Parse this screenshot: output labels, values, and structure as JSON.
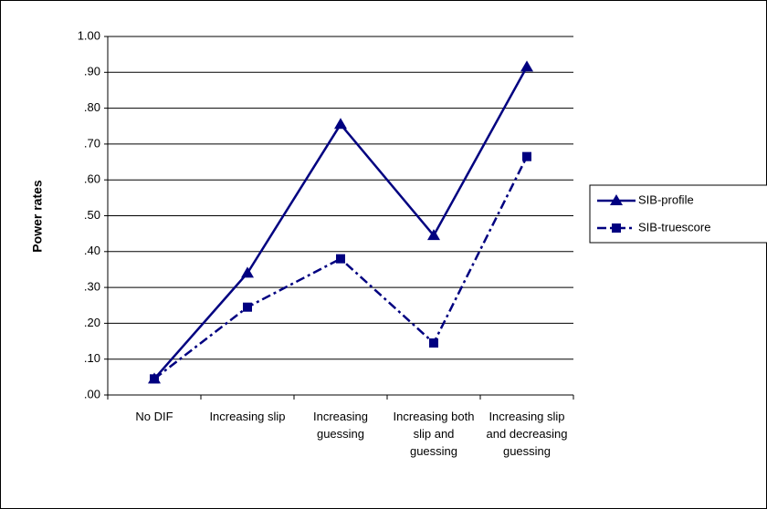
{
  "chart_data": {
    "type": "line",
    "y_label": "Power rates",
    "categories": [
      "No DIF",
      "Increasing slip",
      "Increasing guessing",
      "Increasing both slip and guessing",
      "Increasing slip and decreasing guessing"
    ],
    "series": [
      {
        "name": "SIB-profile",
        "color": "#000080",
        "marker": "triangle",
        "dash": "solid",
        "values": [
          0.045,
          0.34,
          0.755,
          0.445,
          0.915
        ]
      },
      {
        "name": "SIB-truescore",
        "color": "#000080",
        "marker": "square",
        "dash": "dashdot",
        "values": [
          0.045,
          0.245,
          0.38,
          0.145,
          0.665
        ]
      }
    ],
    "ylim": [
      0,
      1
    ],
    "yticks": [
      {
        "value": 0,
        "label": ".00"
      },
      {
        "value": 0.1,
        "label": ".10"
      },
      {
        "value": 0.2,
        "label": ".20"
      },
      {
        "value": 0.3,
        "label": ".30"
      },
      {
        "value": 0.4,
        "label": ".40"
      },
      {
        "value": 0.5,
        "label": ".50"
      },
      {
        "value": 0.6,
        "label": ".60"
      },
      {
        "value": 0.7,
        "label": ".70"
      },
      {
        "value": 0.8,
        "label": ".80"
      },
      {
        "value": 0.9,
        "label": ".90"
      },
      {
        "value": 1,
        "label": "1.00"
      }
    ],
    "grid": true,
    "legend": "right"
  }
}
